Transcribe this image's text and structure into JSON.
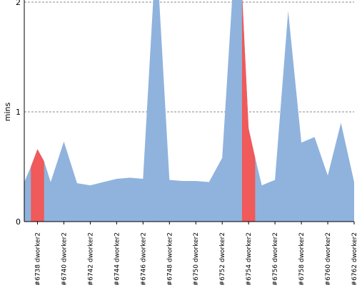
{
  "chart_data": {
    "type": "area",
    "ylabel": "mins",
    "ylim": [
      0,
      2
    ],
    "yticks": [
      0,
      1,
      2
    ],
    "grid": true,
    "x_labels": [
      "#6738 dworker2",
      "#6740 dworker2",
      "#6742 dworker2",
      "#6744 dworker2",
      "#6746 dworker2",
      "#6748 dworker2",
      "#6750 dworker2",
      "#6752 dworker2",
      "#6754 dworker2",
      "#6756 dworker2",
      "#6758 dworker2",
      "#6760 dworker2",
      "#6762 dworker2"
    ],
    "colors": {
      "normal": "#8fb3dd",
      "failed": "#f05a5a"
    },
    "points": [
      {
        "build": 6737,
        "y": 0.36
      },
      {
        "build": 6737.5,
        "y": 0.5
      },
      {
        "build": 6738,
        "y": 0.66
      },
      {
        "build": 6738.5,
        "y": 0.55
      },
      {
        "build": 6739,
        "y": 0.36
      },
      {
        "build": 6740,
        "y": 0.73
      },
      {
        "build": 6741,
        "y": 0.35
      },
      {
        "build": 6742,
        "y": 0.33
      },
      {
        "build": 6743,
        "y": 0.36
      },
      {
        "build": 6744,
        "y": 0.39
      },
      {
        "build": 6745,
        "y": 0.4
      },
      {
        "build": 6746,
        "y": 0.39
      },
      {
        "build": 6747,
        "y": 2.5
      },
      {
        "build": 6748,
        "y": 0.38
      },
      {
        "build": 6749,
        "y": 0.37
      },
      {
        "build": 6750,
        "y": 0.37
      },
      {
        "build": 6751,
        "y": 0.36
      },
      {
        "build": 6752,
        "y": 0.58
      },
      {
        "build": 6753,
        "y": 2.5
      },
      {
        "build": 6753.5,
        "y": 2.1
      },
      {
        "build": 6754,
        "y": 0.85
      },
      {
        "build": 6754.5,
        "y": 0.58
      },
      {
        "build": 6755,
        "y": 0.33
      },
      {
        "build": 6756,
        "y": 0.38
      },
      {
        "build": 6757,
        "y": 1.92
      },
      {
        "build": 6758,
        "y": 0.72
      },
      {
        "build": 6759,
        "y": 0.77
      },
      {
        "build": 6760,
        "y": 0.42
      },
      {
        "build": 6761,
        "y": 0.9
      },
      {
        "build": 6762,
        "y": 0.36
      }
    ],
    "failed_ranges": [
      [
        6737.5,
        6738.5
      ],
      [
        6753.5,
        6754.5
      ]
    ]
  }
}
